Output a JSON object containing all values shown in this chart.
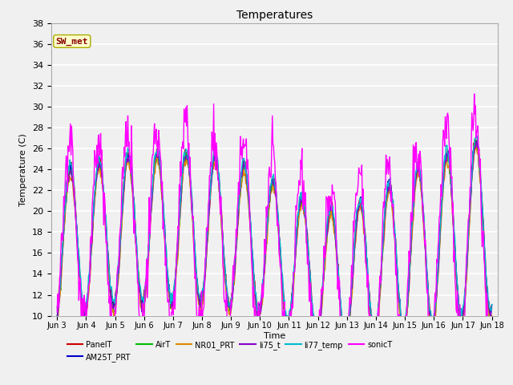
{
  "title": "Temperatures",
  "ylabel": "Temperature (C)",
  "xlabel": "Time",
  "ylim": [
    10,
    38
  ],
  "yticks": [
    10,
    12,
    14,
    16,
    18,
    20,
    22,
    24,
    26,
    28,
    30,
    32,
    34,
    36,
    38
  ],
  "bg_color": "#f0f0f0",
  "plot_bg": "#f0f0f0",
  "series": [
    {
      "label": "PanelT",
      "color": "#cc0000",
      "lw": 1.0
    },
    {
      "label": "AM25T_PRT",
      "color": "#0000cc",
      "lw": 1.0
    },
    {
      "label": "AirT",
      "color": "#00bb00",
      "lw": 1.0
    },
    {
      "label": "NR01_PRT",
      "color": "#dd8800",
      "lw": 1.0
    },
    {
      "label": "li75_t",
      "color": "#8800cc",
      "lw": 1.0
    },
    {
      "label": "li77_temp",
      "color": "#00bbcc",
      "lw": 1.0
    },
    {
      "label": "sonicT",
      "color": "#ff00ff",
      "lw": 1.0
    }
  ],
  "xtick_labels": [
    "Jun 3",
    "Jun 4",
    "Jun 5",
    "Jun 6",
    "Jun 7",
    "Jun 8",
    "Jun 9",
    "Jun 10",
    "Jun 11",
    "Jun 12",
    "Jun 13",
    "Jun 14",
    "Jun 15",
    "Jun 16",
    "Jun 17",
    "Jun 18"
  ],
  "annotation_text": "SW_met",
  "n_points": 720
}
